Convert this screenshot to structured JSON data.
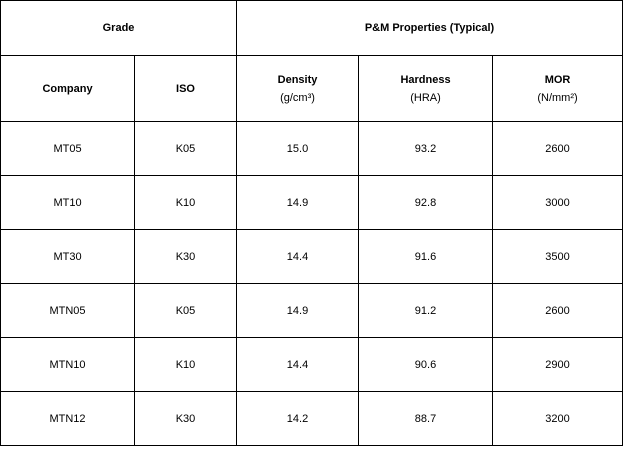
{
  "header": {
    "grade": "Grade",
    "properties": "P&M Properties (Typical)"
  },
  "columns": {
    "company": "Company",
    "iso": "ISO",
    "density": "Density",
    "density_unit": "(g/cm³)",
    "hardness": "Hardness",
    "hardness_unit": "(HRA)",
    "mor": "MOR",
    "mor_unit": "(N/mm²)"
  },
  "rows": [
    {
      "company": "MT05",
      "iso": "K05",
      "density": "15.0",
      "hardness": "93.2",
      "mor": "2600"
    },
    {
      "company": "MT10",
      "iso": "K10",
      "density": "14.9",
      "hardness": "92.8",
      "mor": "3000"
    },
    {
      "company": "MT30",
      "iso": "K30",
      "density": "14.4",
      "hardness": "91.6",
      "mor": "3500"
    },
    {
      "company": "MTN05",
      "iso": "K05",
      "density": "14.9",
      "hardness": "91.2",
      "mor": "2600"
    },
    {
      "company": "MTN10",
      "iso": "K10",
      "density": "14.4",
      "hardness": "90.6",
      "mor": "2900"
    },
    {
      "company": "MTN12",
      "iso": "K30",
      "density": "14.2",
      "hardness": "88.7",
      "mor": "3200"
    }
  ]
}
